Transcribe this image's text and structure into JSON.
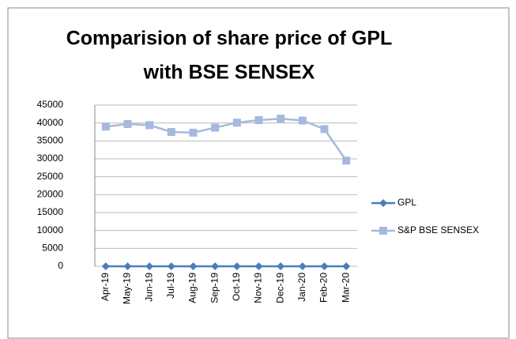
{
  "chart_data": {
    "type": "line",
    "title": [
      "Comparision of share price of GPL",
      "with BSE SENSEX"
    ],
    "categories": [
      "Apr-19",
      "May-19",
      "Jun-19",
      "Jul-19",
      "Aug-19",
      "Sep-19",
      "Oct-19",
      "Nov-19",
      "Dec-19",
      "Jan-20",
      "Feb-20",
      "Mar-20"
    ],
    "series": [
      {
        "name": "GPL",
        "color": "#4a7ebb",
        "marker": "diamond",
        "values": [
          0,
          0,
          0,
          0,
          0,
          0,
          0,
          0,
          0,
          0,
          0,
          0
        ]
      },
      {
        "name": "S&P BSE SENSEX",
        "color": "#a5b9de",
        "marker": "square",
        "values": [
          39000,
          39700,
          39400,
          37500,
          37300,
          38700,
          40100,
          40800,
          41200,
          40700,
          38300,
          29500
        ]
      }
    ],
    "ylim": [
      0,
      45000
    ],
    "yticks": [
      0,
      5000,
      10000,
      15000,
      20000,
      25000,
      30000,
      35000,
      40000,
      45000
    ],
    "grid": true,
    "legend": "right"
  }
}
